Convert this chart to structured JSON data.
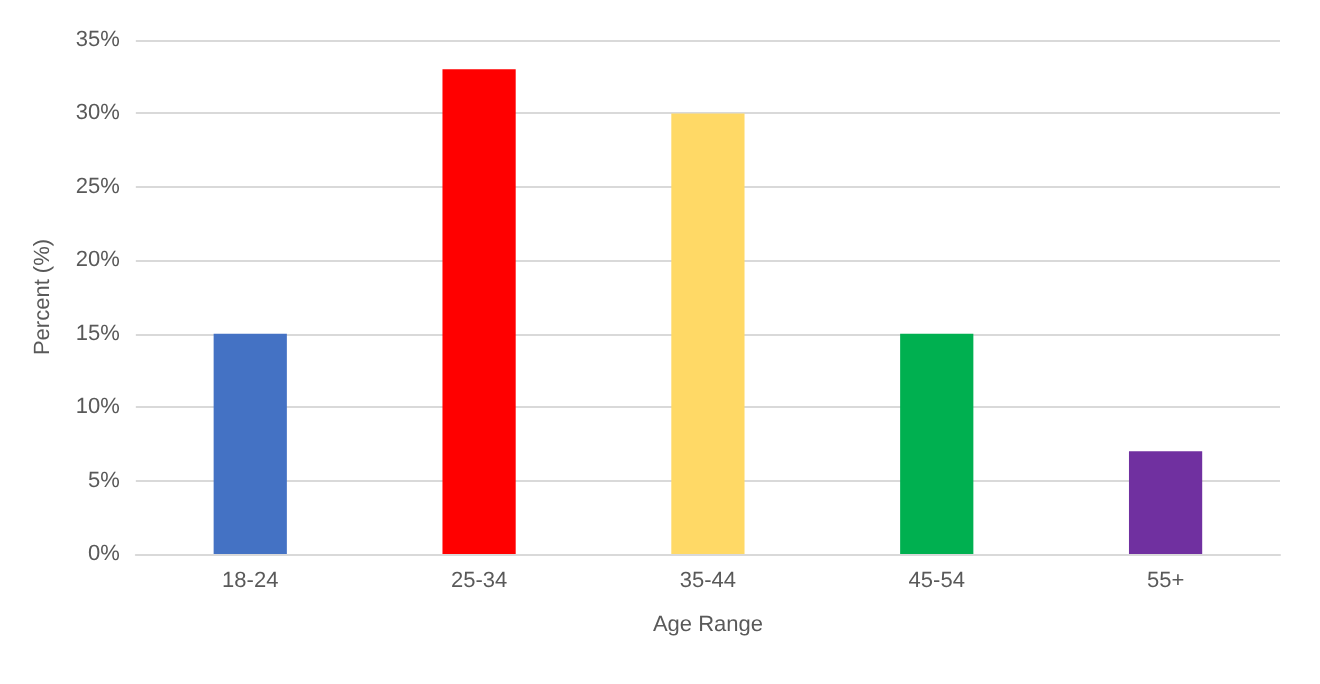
{
  "chart_data": {
    "type": "bar",
    "xlabel": "Age Range",
    "ylabel": "Percent (%)",
    "categories": [
      "18-24",
      "25-34",
      "35-44",
      "45-54",
      "55+"
    ],
    "values": [
      15,
      33,
      30,
      15,
      7
    ],
    "colors": [
      "#4472c4",
      "#ff0000",
      "#ffd966",
      "#00b050",
      "#7030a0"
    ],
    "ylim": [
      0,
      35
    ],
    "yticks": [
      {
        "value": 0,
        "label": "0%"
      },
      {
        "value": 5,
        "label": "5%"
      },
      {
        "value": 10,
        "label": "10%"
      },
      {
        "value": 15,
        "label": "15%"
      },
      {
        "value": 20,
        "label": "20%"
      },
      {
        "value": 25,
        "label": "25%"
      },
      {
        "value": 30,
        "label": "30%"
      },
      {
        "value": 35,
        "label": "35%"
      }
    ],
    "grid": "y"
  }
}
